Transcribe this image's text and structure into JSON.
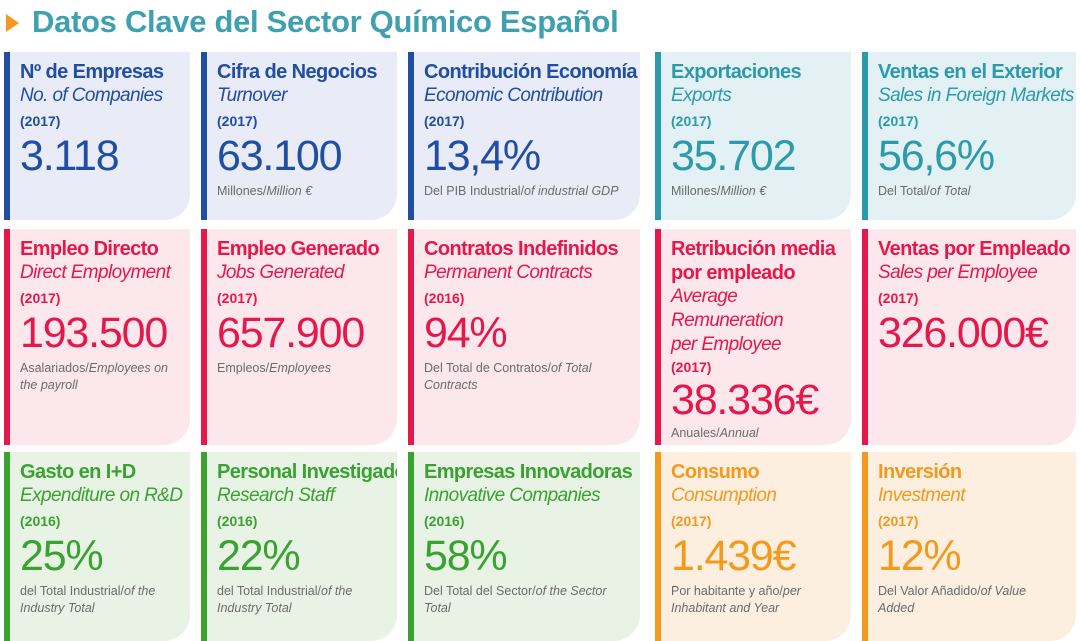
{
  "title": "Datos Clave del Sector Químico Español",
  "colors": {
    "title": "#3fa0b0",
    "blue": "#1f4ea3",
    "teal": "#2b9bab",
    "red": "#e5184c",
    "green": "#3aa231",
    "orange": "#f39a1e"
  },
  "cards": [
    {
      "es": "Nº de Empresas",
      "en": "No. of Companies",
      "year": "(2017)",
      "value": "3.118",
      "note_es": "",
      "note_en": ""
    },
    {
      "es": "Cifra de Negocios",
      "en": "Turnover",
      "year": "(2017)",
      "value": "63.100",
      "note_es": "Millones/",
      "note_en": "Million €"
    },
    {
      "es": "Contribución Economía",
      "en": "Economic Contribution",
      "year": "(2017)",
      "value": "13,4%",
      "note_es": "Del PIB Industrial/",
      "note_en": "of industrial GDP"
    },
    {
      "es": "Exportaciones",
      "en": "Exports",
      "year": "(2017)",
      "value": "35.702",
      "note_es": "Millones/",
      "note_en": "Million €"
    },
    {
      "es": "Ventas en el Exterior",
      "en": "Sales in Foreign Markets",
      "year": "(2017)",
      "value": "56,6%",
      "note_es": "Del Total/",
      "note_en": "of Total"
    },
    {
      "es": "Empleo Directo",
      "en": "Direct Employment",
      "year": "(2017)",
      "value": "193.500",
      "note_es": "Asalariados/",
      "note_en": "Employees on the payroll"
    },
    {
      "es": "Empleo Generado",
      "en": "Jobs Generated",
      "year": "(2017)",
      "value": "657.900",
      "note_es": "Empleos/",
      "note_en": "Employees"
    },
    {
      "es": "Contratos Indefinidos",
      "en": "Permanent Contracts",
      "year": "(2016)",
      "value": "94%",
      "note_es": "Del Total de Contratos/",
      "note_en": "of Total Contracts"
    },
    {
      "es": "Retribución media\npor empleado",
      "en": "Average Remuneration\nper Employee",
      "year": "(2017)",
      "value": "38.336€",
      "note_es": "Anuales/",
      "note_en": "Annual"
    },
    {
      "es": "Ventas por Empleado",
      "en": "Sales per Employee",
      "year": "(2017)",
      "value": "326.000€",
      "note_es": "",
      "note_en": ""
    },
    {
      "es": "Gasto en I+D",
      "en": "Expenditure on R&D",
      "year": "(2016)",
      "value": "25%",
      "note_es": "del Total Industrial/",
      "note_en": "of the Industry Total"
    },
    {
      "es": "Personal Investigador",
      "en": "Research Staff",
      "year": "(2016)",
      "value": "22%",
      "note_es": "del Total Industrial/",
      "note_en": "of the Industry Total"
    },
    {
      "es": "Empresas Innovadoras",
      "en": "Innovative Companies",
      "year": "(2016)",
      "value": "58%",
      "note_es": "Del Total del Sector/",
      "note_en": "of the Sector Total"
    },
    {
      "es": "Consumo",
      "en": "Consumption",
      "year": "(2017)",
      "value": "1.439€",
      "note_es": "Por habitante y año/",
      "note_en": "per Inhabitant and Year"
    },
    {
      "es": "Inversión",
      "en": "Investment",
      "year": "(2017)",
      "value": "12%",
      "note_es": "Del Valor Añadido/",
      "note_en": "of Value Added"
    }
  ]
}
